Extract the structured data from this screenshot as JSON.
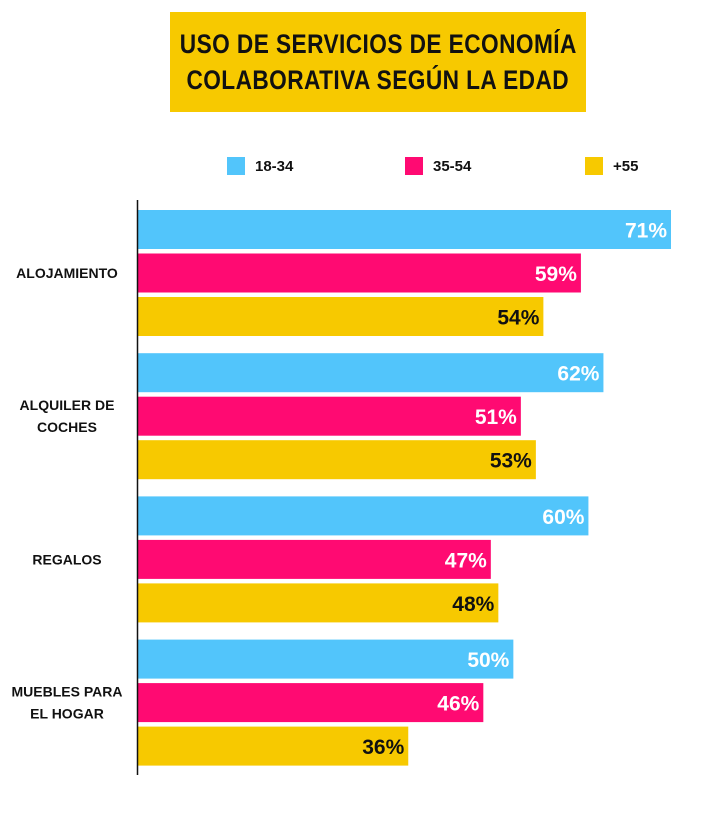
{
  "header": {
    "title_line1": "USO DE SERVICIOS DE ECONOMÍA",
    "title_line2": "COLABORATIVA SEGÚN LA EDAD"
  },
  "legend": [
    {
      "label": "18-34",
      "color": "#52c5fb"
    },
    {
      "label": "35-54",
      "color": "#ff0a72"
    },
    {
      "label": "+55",
      "color": "#f7c900"
    }
  ],
  "chart_data": {
    "type": "bar",
    "orientation": "horizontal",
    "title": "USO DE SERVICIOS DE ECONOMÍA COLABORATIVA SEGÚN LA EDAD",
    "xlabel": "",
    "ylabel": "",
    "categories": [
      [
        "ALOJAMIENTO"
      ],
      [
        "ALQUILER DE",
        "COCHES"
      ],
      [
        "REGALOS"
      ],
      [
        "MUEBLES PARA",
        "EL HOGAR"
      ]
    ],
    "series": [
      {
        "name": "18-34",
        "color": "#52c5fb",
        "label_color": "#ffffff",
        "values": [
          71,
          62,
          60,
          50
        ],
        "labels": [
          "71%",
          "62%",
          "60%",
          "50%"
        ]
      },
      {
        "name": "35-54",
        "color": "#ff0a72",
        "label_color": "#ffffff",
        "values": [
          59,
          51,
          47,
          46
        ],
        "labels": [
          "59%",
          "51%",
          "47%",
          "46%"
        ]
      },
      {
        "name": "+55",
        "color": "#f7c900",
        "label_color": "#111111",
        "values": [
          54,
          53,
          48,
          36
        ],
        "labels": [
          "54%",
          "53%",
          "48%",
          "36%"
        ]
      }
    ],
    "xlim": [
      0,
      71
    ],
    "grid": false,
    "legend_position": "top"
  }
}
